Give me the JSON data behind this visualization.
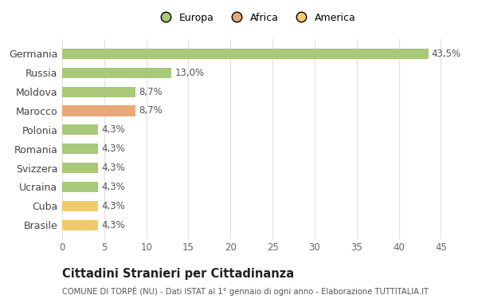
{
  "categories": [
    "Brasile",
    "Cuba",
    "Ucraina",
    "Svizzera",
    "Romania",
    "Polonia",
    "Marocco",
    "Moldova",
    "Russia",
    "Germania"
  ],
  "values": [
    4.3,
    4.3,
    4.3,
    4.3,
    4.3,
    4.3,
    8.7,
    8.7,
    13.0,
    43.5
  ],
  "labels": [
    "4,3%",
    "4,3%",
    "4,3%",
    "4,3%",
    "4,3%",
    "4,3%",
    "8,7%",
    "8,7%",
    "13,0%",
    "43,5%"
  ],
  "colors": [
    "#f2ca6e",
    "#f2ca6e",
    "#a8c87a",
    "#a8c87a",
    "#a8c87a",
    "#a8c87a",
    "#e8a87a",
    "#a8c87a",
    "#a8c87a",
    "#a8c87a"
  ],
  "legend": [
    {
      "label": "Europa",
      "color": "#a8c87a"
    },
    {
      "label": "Africa",
      "color": "#e8a87a"
    },
    {
      "label": "America",
      "color": "#f2ca6e"
    }
  ],
  "xlim": [
    0,
    46
  ],
  "xticks": [
    0,
    5,
    10,
    15,
    20,
    25,
    30,
    35,
    40,
    45
  ],
  "title": "Cittadini Stranieri per Cittadinanza",
  "subtitle": "COMUNE DI TORPÈ (NU) - Dati ISTAT al 1° gennaio di ogni anno - Elaborazione TUTTITALIA.IT",
  "bg_color": "#ffffff",
  "grid_color": "#e0e0e0",
  "bar_height": 0.55,
  "label_fontsize": 8.5,
  "ytick_fontsize": 9,
  "xtick_fontsize": 8.5
}
